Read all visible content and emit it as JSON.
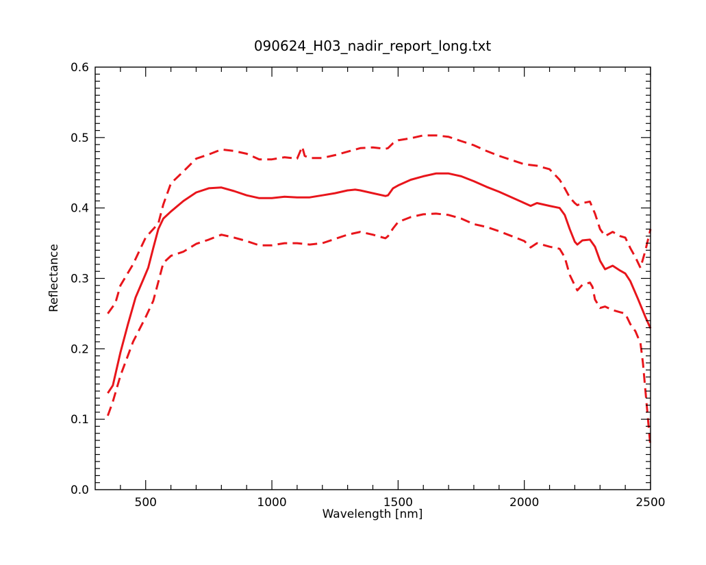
{
  "chart_data": {
    "type": "line",
    "title": "090624_H03_nadir_report_long.txt",
    "xlabel": "Wavelength [nm]",
    "ylabel": "Reflectance",
    "xlim": [
      300,
      2500
    ],
    "ylim": [
      0.0,
      0.6
    ],
    "x_ticks": [
      500,
      1000,
      1500,
      2000,
      2500
    ],
    "x_tick_labels": [
      "500",
      "1000",
      "1500",
      "2000",
      "2500"
    ],
    "y_ticks": [
      0.0,
      0.1,
      0.2,
      0.3,
      0.4,
      0.5,
      0.6
    ],
    "y_tick_labels": [
      "0.0",
      "0.1",
      "0.2",
      "0.3",
      "0.4",
      "0.5",
      "0.6"
    ],
    "grid": false,
    "color": "#e8151b",
    "series": [
      {
        "style": "solid",
        "x": [
          350,
          370,
          400,
          430,
          460,
          490,
          510,
          530,
          550,
          570,
          600,
          650,
          700,
          750,
          800,
          850,
          900,
          950,
          1000,
          1050,
          1100,
          1150,
          1200,
          1250,
          1300,
          1330,
          1350,
          1400,
          1450,
          1460,
          1480,
          1500,
          1550,
          1600,
          1650,
          1700,
          1750,
          1800,
          1850,
          1900,
          1950,
          2000,
          2025,
          2050,
          2100,
          2140,
          2160,
          2180,
          2200,
          2210,
          2230,
          2260,
          2280,
          2300,
          2320,
          2350,
          2380,
          2400,
          2420,
          2450,
          2480,
          2500
        ],
        "y": [
          0.137,
          0.148,
          0.195,
          0.235,
          0.273,
          0.298,
          0.315,
          0.343,
          0.37,
          0.385,
          0.395,
          0.41,
          0.422,
          0.428,
          0.429,
          0.424,
          0.418,
          0.414,
          0.414,
          0.416,
          0.415,
          0.415,
          0.418,
          0.421,
          0.425,
          0.426,
          0.425,
          0.421,
          0.417,
          0.418,
          0.428,
          0.432,
          0.44,
          0.445,
          0.449,
          0.449,
          0.445,
          0.438,
          0.43,
          0.423,
          0.415,
          0.407,
          0.403,
          0.407,
          0.403,
          0.4,
          0.39,
          0.37,
          0.352,
          0.348,
          0.354,
          0.355,
          0.345,
          0.325,
          0.313,
          0.318,
          0.311,
          0.307,
          0.296,
          0.271,
          0.245,
          0.229
        ]
      },
      {
        "style": "dashed",
        "x": [
          350,
          380,
          400,
          450,
          500,
          550,
          570,
          600,
          650,
          700,
          750,
          800,
          850,
          900,
          950,
          1000,
          1050,
          1100,
          1120,
          1130,
          1150,
          1200,
          1250,
          1300,
          1350,
          1400,
          1450,
          1460,
          1480,
          1500,
          1550,
          1600,
          1650,
          1700,
          1750,
          1800,
          1850,
          1900,
          1950,
          2000,
          2050,
          2100,
          2140,
          2160,
          2180,
          2200,
          2210,
          2230,
          2260,
          2280,
          2300,
          2320,
          2350,
          2380,
          2400,
          2420,
          2440,
          2460,
          2480,
          2500
        ],
        "y": [
          0.25,
          0.265,
          0.29,
          0.32,
          0.358,
          0.378,
          0.405,
          0.435,
          0.452,
          0.47,
          0.476,
          0.483,
          0.481,
          0.477,
          0.469,
          0.469,
          0.472,
          0.47,
          0.487,
          0.474,
          0.471,
          0.471,
          0.475,
          0.48,
          0.485,
          0.486,
          0.484,
          0.485,
          0.492,
          0.496,
          0.499,
          0.503,
          0.503,
          0.501,
          0.495,
          0.489,
          0.481,
          0.474,
          0.468,
          0.462,
          0.46,
          0.455,
          0.44,
          0.428,
          0.415,
          0.407,
          0.404,
          0.407,
          0.409,
          0.392,
          0.37,
          0.36,
          0.366,
          0.36,
          0.358,
          0.343,
          0.33,
          0.315,
          0.34,
          0.37
        ]
      },
      {
        "style": "dashed",
        "x": [
          350,
          370,
          400,
          450,
          500,
          530,
          550,
          570,
          600,
          650,
          700,
          750,
          800,
          850,
          900,
          950,
          1000,
          1050,
          1100,
          1150,
          1200,
          1250,
          1300,
          1350,
          1400,
          1450,
          1460,
          1480,
          1500,
          1550,
          1600,
          1650,
          1700,
          1750,
          1800,
          1850,
          1900,
          1950,
          2000,
          2025,
          2050,
          2100,
          2140,
          2160,
          2180,
          2200,
          2210,
          2230,
          2260,
          2270,
          2280,
          2300,
          2320,
          2350,
          2380,
          2400,
          2420,
          2440,
          2460,
          2470,
          2480,
          2490,
          2500
        ],
        "y": [
          0.105,
          0.125,
          0.162,
          0.21,
          0.245,
          0.268,
          0.295,
          0.322,
          0.332,
          0.338,
          0.349,
          0.355,
          0.362,
          0.358,
          0.353,
          0.347,
          0.347,
          0.35,
          0.35,
          0.348,
          0.35,
          0.356,
          0.362,
          0.366,
          0.362,
          0.357,
          0.36,
          0.371,
          0.38,
          0.387,
          0.391,
          0.392,
          0.39,
          0.385,
          0.377,
          0.373,
          0.367,
          0.36,
          0.353,
          0.344,
          0.35,
          0.345,
          0.342,
          0.33,
          0.305,
          0.29,
          0.283,
          0.291,
          0.294,
          0.288,
          0.27,
          0.258,
          0.26,
          0.255,
          0.252,
          0.25,
          0.235,
          0.225,
          0.208,
          0.18,
          0.14,
          0.1,
          0.06
        ]
      }
    ]
  }
}
